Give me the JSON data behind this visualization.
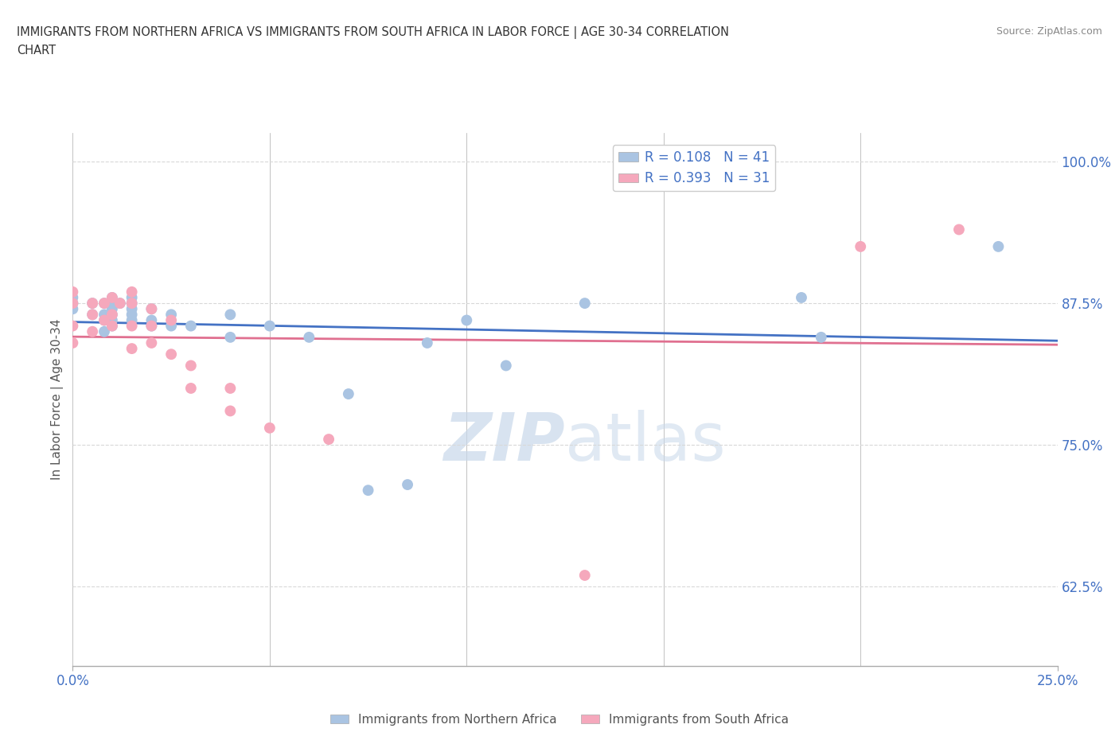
{
  "title_line1": "IMMIGRANTS FROM NORTHERN AFRICA VS IMMIGRANTS FROM SOUTH AFRICA IN LABOR FORCE | AGE 30-34 CORRELATION",
  "title_line2": "CHART",
  "source": "Source: ZipAtlas.com",
  "ylabel": "In Labor Force | Age 30-34",
  "xlim": [
    0.0,
    0.25
  ],
  "ylim": [
    0.555,
    1.025
  ],
  "yticks": [
    0.625,
    0.75,
    0.875,
    1.0
  ],
  "ytick_labels": [
    "62.5%",
    "75.0%",
    "87.5%",
    "100.0%"
  ],
  "xticks": [
    0.0,
    0.25
  ],
  "xtick_labels": [
    "0.0%",
    "25.0%"
  ],
  "blue_color": "#aac4e2",
  "pink_color": "#f5a8bc",
  "blue_line_color": "#4472c4",
  "pink_line_color": "#e07090",
  "tick_color": "#4472c4",
  "watermark_color": "#c8d8ea",
  "R_blue": 0.108,
  "N_blue": 41,
  "R_pink": 0.393,
  "N_pink": 31,
  "blue_scatter_x": [
    0.0,
    0.0,
    0.0,
    0.005,
    0.005,
    0.008,
    0.008,
    0.008,
    0.008,
    0.01,
    0.01,
    0.01,
    0.01,
    0.01,
    0.01,
    0.012,
    0.015,
    0.015,
    0.015,
    0.015,
    0.015,
    0.02,
    0.02,
    0.02,
    0.025,
    0.025,
    0.03,
    0.04,
    0.04,
    0.05,
    0.06,
    0.07,
    0.075,
    0.085,
    0.09,
    0.1,
    0.11,
    0.13,
    0.185,
    0.19,
    0.235
  ],
  "blue_scatter_y": [
    0.87,
    0.875,
    0.88,
    0.865,
    0.875,
    0.85,
    0.86,
    0.865,
    0.875,
    0.855,
    0.86,
    0.865,
    0.87,
    0.875,
    0.88,
    0.875,
    0.86,
    0.865,
    0.87,
    0.875,
    0.88,
    0.855,
    0.86,
    0.87,
    0.855,
    0.865,
    0.855,
    0.845,
    0.865,
    0.855,
    0.845,
    0.795,
    0.71,
    0.715,
    0.84,
    0.86,
    0.82,
    0.875,
    0.88,
    0.845,
    0.925
  ],
  "pink_scatter_x": [
    0.0,
    0.0,
    0.0,
    0.0,
    0.005,
    0.005,
    0.005,
    0.008,
    0.008,
    0.01,
    0.01,
    0.01,
    0.012,
    0.015,
    0.015,
    0.015,
    0.015,
    0.02,
    0.02,
    0.02,
    0.025,
    0.025,
    0.03,
    0.03,
    0.04,
    0.04,
    0.05,
    0.065,
    0.13,
    0.2,
    0.225
  ],
  "pink_scatter_y": [
    0.84,
    0.855,
    0.875,
    0.885,
    0.85,
    0.865,
    0.875,
    0.86,
    0.875,
    0.855,
    0.865,
    0.88,
    0.875,
    0.835,
    0.855,
    0.875,
    0.885,
    0.84,
    0.855,
    0.87,
    0.83,
    0.86,
    0.8,
    0.82,
    0.78,
    0.8,
    0.765,
    0.755,
    0.635,
    0.925,
    0.94
  ],
  "background_color": "#ffffff",
  "grid_color": "#d8d8d8"
}
